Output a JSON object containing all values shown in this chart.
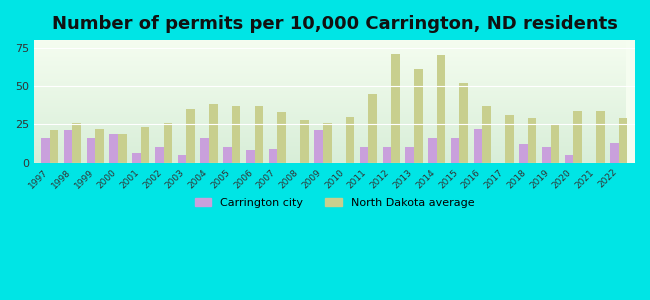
{
  "title": "Number of permits per 10,000 Carrington, ND residents",
  "years": [
    1997,
    1998,
    1999,
    2000,
    2001,
    2002,
    2003,
    2004,
    2005,
    2006,
    2007,
    2008,
    2009,
    2010,
    2011,
    2012,
    2013,
    2014,
    2015,
    2016,
    2017,
    2018,
    2019,
    2020,
    2021,
    2022
  ],
  "carrington": [
    16,
    21,
    16,
    19,
    6,
    10,
    5,
    16,
    10,
    8,
    9,
    0,
    21,
    0,
    10,
    10,
    10,
    16,
    16,
    22,
    0,
    12,
    10,
    5,
    0,
    13
  ],
  "nd_average": [
    21,
    26,
    22,
    19,
    23,
    26,
    35,
    38,
    37,
    37,
    33,
    28,
    26,
    30,
    45,
    71,
    61,
    70,
    52,
    37,
    31,
    29,
    25,
    34,
    34,
    29
  ],
  "carrington_color": "#c9a0dc",
  "nd_color": "#c8cf8e",
  "background_outer": "#00e5e5",
  "background_inner_top": "#f5fdf0",
  "background_inner_bottom": "#d8eed8",
  "ylim": [
    0,
    80
  ],
  "yticks": [
    0,
    25,
    50,
    75
  ],
  "title_fontsize": 13,
  "legend_carrington": "Carrington city",
  "legend_nd": "North Dakota average"
}
